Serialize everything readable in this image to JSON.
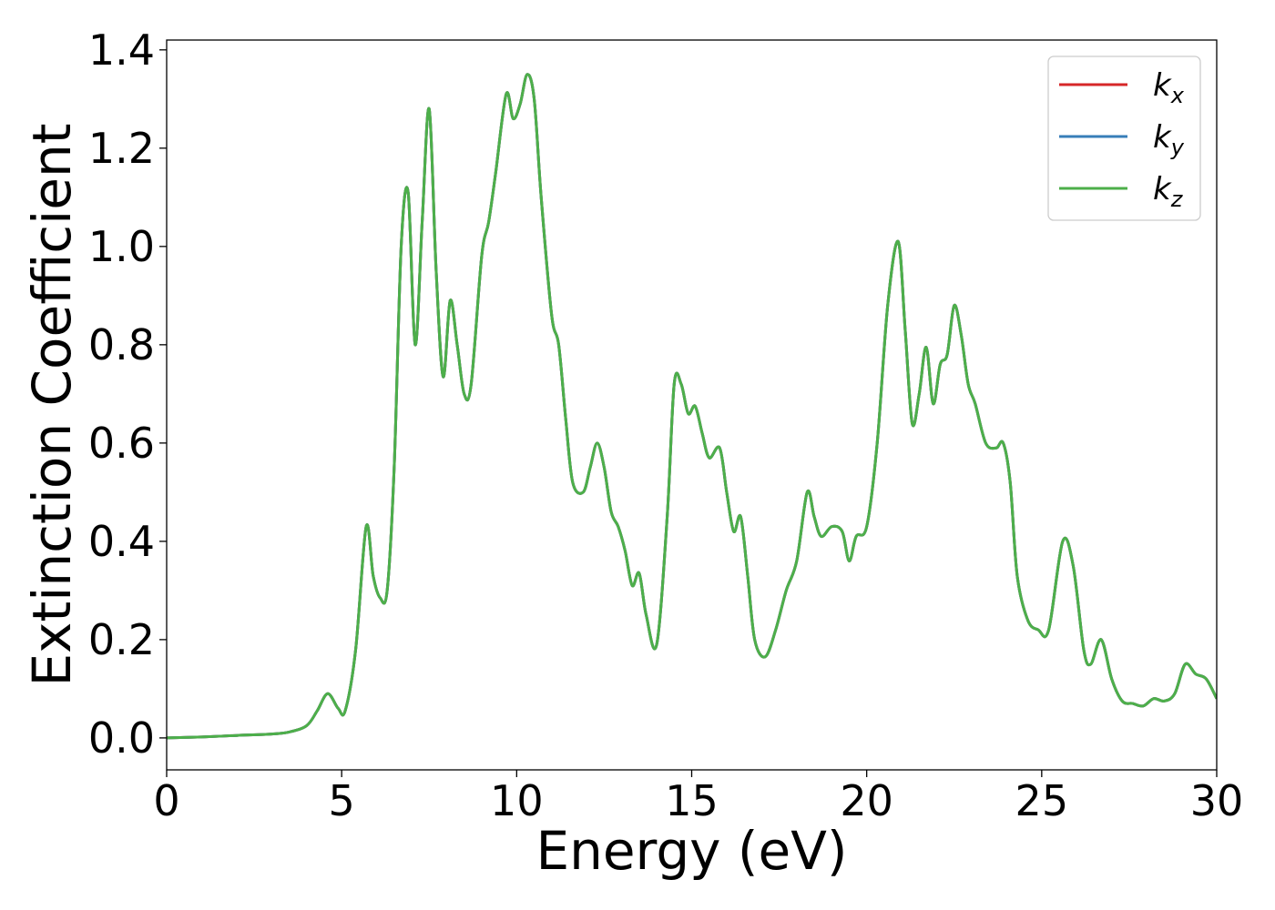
{
  "chart_data": {
    "type": "line",
    "xlabel": "Energy (eV)",
    "ylabel": "Extinction Coefficient",
    "xlim": [
      0,
      30
    ],
    "ylim": [
      -0.065,
      1.42
    ],
    "xticks": [
      0,
      5,
      10,
      15,
      20,
      25,
      30
    ],
    "xtick_labels": [
      "0",
      "5",
      "10",
      "15",
      "20",
      "25",
      "30"
    ],
    "yticks": [
      0.0,
      0.2,
      0.4,
      0.6,
      0.8,
      1.0,
      1.2,
      1.4
    ],
    "ytick_labels": [
      "0.0",
      "0.2",
      "0.4",
      "0.6",
      "0.8",
      "1.0",
      "1.2",
      "1.4"
    ],
    "grid": false,
    "legend": "top-right",
    "series": [
      {
        "name": "k_x",
        "label_main": "k",
        "label_sub": "x",
        "color": "#d62728",
        "x": [
          0,
          1,
          2,
          3,
          3.5,
          4,
          4.3,
          4.6,
          4.9,
          5.1,
          5.4,
          5.7,
          5.9,
          6.1,
          6.3,
          6.5,
          6.7,
          6.9,
          7.1,
          7.3,
          7.5,
          7.7,
          7.9,
          8.1,
          8.3,
          8.5,
          8.7,
          9.0,
          9.2,
          9.4,
          9.7,
          9.9,
          10.1,
          10.3,
          10.5,
          10.7,
          11.0,
          11.2,
          11.4,
          11.6,
          11.9,
          12.1,
          12.3,
          12.5,
          12.7,
          12.9,
          13.1,
          13.3,
          13.5,
          13.7,
          14.0,
          14.3,
          14.5,
          14.7,
          14.9,
          15.1,
          15.3,
          15.5,
          15.8,
          16.0,
          16.2,
          16.4,
          16.6,
          16.8,
          17.1,
          17.4,
          17.7,
          18.0,
          18.3,
          18.5,
          18.7,
          19.0,
          19.3,
          19.5,
          19.7,
          20.0,
          20.3,
          20.6,
          20.9,
          21.1,
          21.3,
          21.5,
          21.7,
          21.9,
          22.1,
          22.3,
          22.5,
          22.7,
          22.9,
          23.1,
          23.4,
          23.7,
          23.9,
          24.1,
          24.3,
          24.6,
          24.9,
          25.2,
          25.6,
          25.9,
          26.2,
          26.4,
          26.7,
          27.0,
          27.3,
          27.6,
          27.9,
          28.2,
          28.5,
          28.8,
          29.1,
          29.4,
          29.7,
          30
        ],
        "y": [
          0.0,
          0.002,
          0.005,
          0.008,
          0.012,
          0.025,
          0.055,
          0.09,
          0.06,
          0.055,
          0.18,
          0.43,
          0.33,
          0.285,
          0.3,
          0.55,
          1.0,
          1.11,
          0.8,
          1.05,
          1.28,
          0.95,
          0.735,
          0.89,
          0.8,
          0.7,
          0.72,
          0.98,
          1.05,
          1.15,
          1.31,
          1.26,
          1.29,
          1.35,
          1.3,
          1.1,
          0.86,
          0.8,
          0.65,
          0.52,
          0.5,
          0.55,
          0.6,
          0.55,
          0.46,
          0.43,
          0.38,
          0.31,
          0.335,
          0.25,
          0.19,
          0.45,
          0.72,
          0.72,
          0.66,
          0.675,
          0.62,
          0.57,
          0.59,
          0.5,
          0.42,
          0.45,
          0.33,
          0.2,
          0.165,
          0.22,
          0.3,
          0.36,
          0.5,
          0.45,
          0.41,
          0.43,
          0.42,
          0.36,
          0.41,
          0.43,
          0.6,
          0.88,
          1.01,
          0.83,
          0.64,
          0.7,
          0.795,
          0.68,
          0.76,
          0.78,
          0.88,
          0.82,
          0.72,
          0.68,
          0.6,
          0.59,
          0.6,
          0.52,
          0.33,
          0.24,
          0.22,
          0.22,
          0.4,
          0.35,
          0.18,
          0.15,
          0.2,
          0.12,
          0.075,
          0.07,
          0.065,
          0.08,
          0.075,
          0.09,
          0.15,
          0.13,
          0.12,
          0.08
        ]
      },
      {
        "name": "k_y",
        "label_main": "k",
        "label_sub": "y",
        "color": "#377eb8",
        "same_as": "k_x"
      },
      {
        "name": "k_z",
        "label_main": "k",
        "label_sub": "z",
        "color": "#4daf4a",
        "same_as": "k_x"
      }
    ]
  }
}
